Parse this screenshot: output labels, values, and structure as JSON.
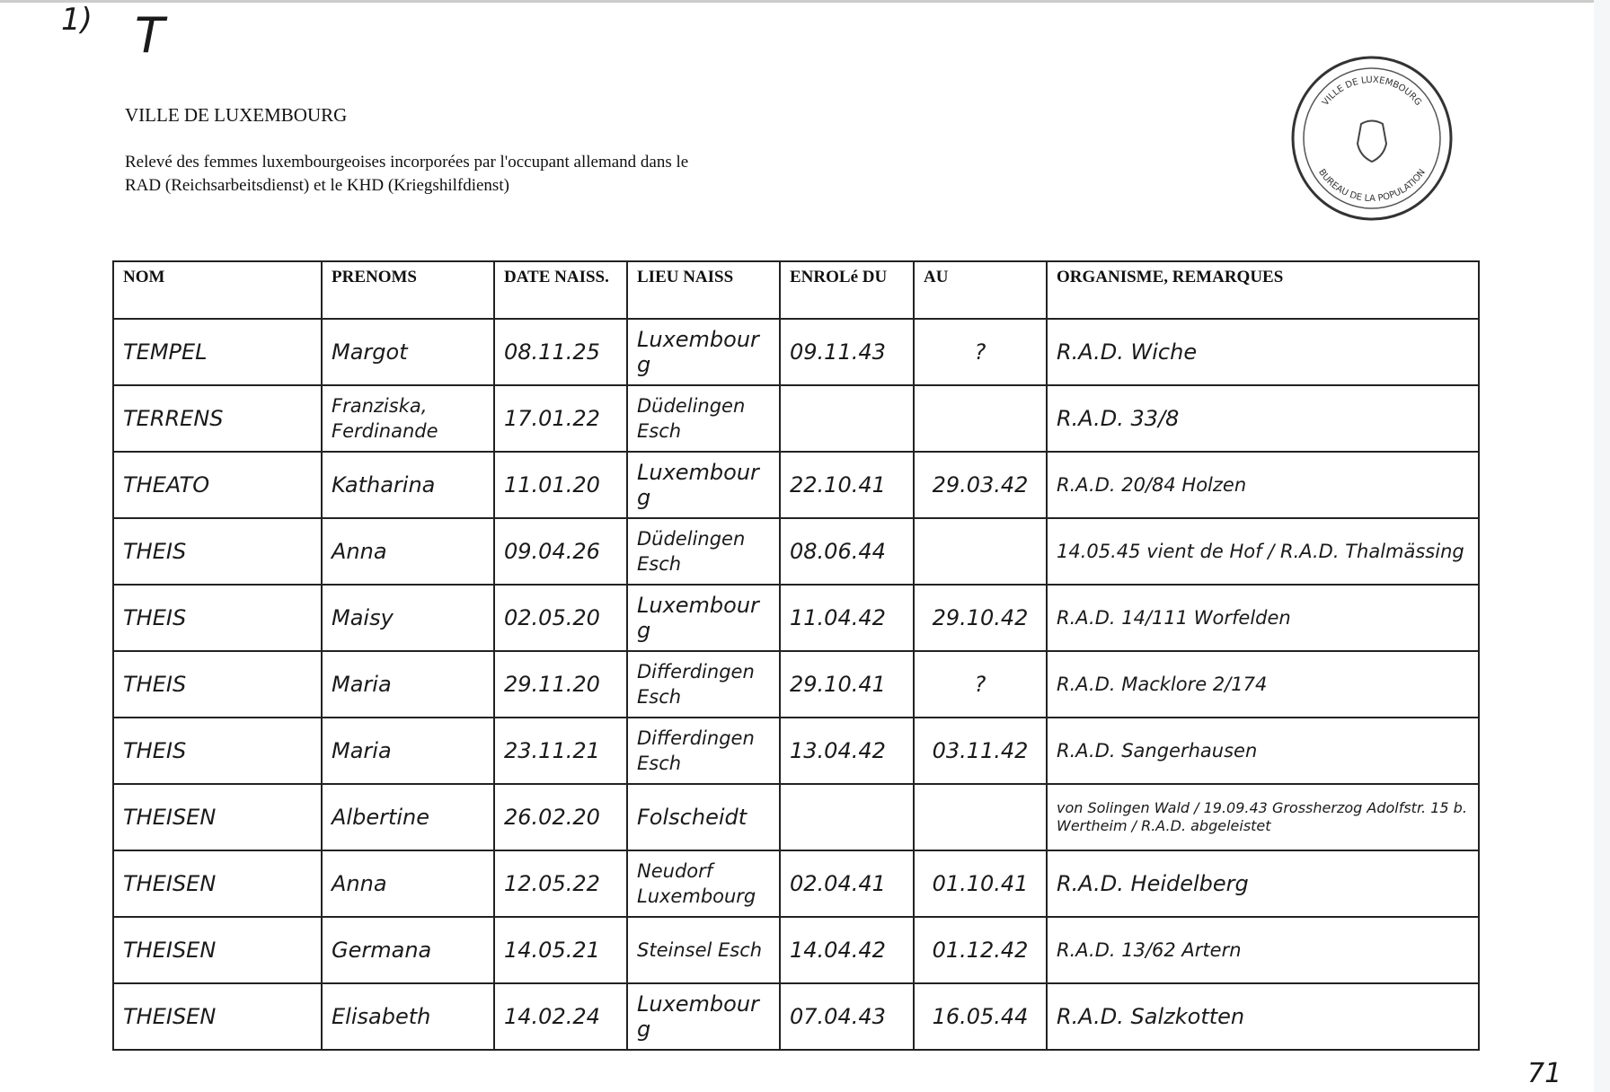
{
  "annotations": {
    "corner_mark": "1)",
    "letter": "T",
    "page_number": "71"
  },
  "header": {
    "city": "VILLE DE LUXEMBOURG",
    "description_line1": "Relevé des femmes luxembourgeoises incorporées par l'occupant allemand dans le",
    "description_line2": "RAD (Reichsarbeitsdienst) et le KHD (Kriegshilfdienst)"
  },
  "stamp": {
    "outer_text": "VILLE DE LUXEMBOURG",
    "inner_text": "BUREAU DE LA POPULATION"
  },
  "table": {
    "columns": [
      "NOM",
      "PRENOMS",
      "DATE NAISS.",
      "LIEU NAISS",
      "ENROLé DU",
      "AU",
      "ORGANISME, REMARQUES"
    ],
    "rows": [
      {
        "nom": "TEMPEL",
        "prenoms": "Margot",
        "date_naiss": "08.11.25",
        "lieu": "Luxembourg",
        "du": "09.11.43",
        "au": "?",
        "remarques": "R.A.D. Wiche"
      },
      {
        "nom": "TERRENS",
        "prenoms": "Franziska, Ferdinande",
        "date_naiss": "17.01.22",
        "lieu": "Düdelingen Esch",
        "du": "",
        "au": "",
        "remarques": "R.A.D. 33/8"
      },
      {
        "nom": "THEATO",
        "prenoms": "Katharina",
        "date_naiss": "11.01.20",
        "lieu": "Luxembourg",
        "du": "22.10.41",
        "au": "29.03.42",
        "remarques": "R.A.D. 20/84 Holzen"
      },
      {
        "nom": "THEIS",
        "prenoms": "Anna",
        "date_naiss": "09.04.26",
        "lieu": "Düdelingen Esch",
        "du": "08.06.44",
        "au": "",
        "remarques": "14.05.45 vient de Hof / R.A.D. Thalmässing"
      },
      {
        "nom": "THEIS",
        "prenoms": "Maisy",
        "date_naiss": "02.05.20",
        "lieu": "Luxembourg",
        "du": "11.04.42",
        "au": "29.10.42",
        "remarques": "R.A.D. 14/111 Worfelden"
      },
      {
        "nom": "THEIS",
        "prenoms": "Maria",
        "date_naiss": "29.11.20",
        "lieu": "Differdingen Esch",
        "du": "29.10.41",
        "au": "?",
        "remarques": "R.A.D. Macklore 2/174"
      },
      {
        "nom": "THEIS",
        "prenoms": "Maria",
        "date_naiss": "23.11.21",
        "lieu": "Differdingen Esch",
        "du": "13.04.42",
        "au": "03.11.42",
        "remarques": "R.A.D. Sangerhausen"
      },
      {
        "nom": "THEISEN",
        "prenoms": "Albertine",
        "date_naiss": "26.02.20",
        "lieu": "Folscheidt",
        "du": "",
        "au": "",
        "remarques": "von Solingen Wald / 19.09.43 Grossherzog Adolfstr. 15 b. Wertheim / R.A.D. abgeleistet"
      },
      {
        "nom": "THEISEN",
        "prenoms": "Anna",
        "date_naiss": "12.05.22",
        "lieu": "Neudorf Luxembourg",
        "du": "02.04.41",
        "au": "01.10.41",
        "remarques": "R.A.D. Heidelberg"
      },
      {
        "nom": "THEISEN",
        "prenoms": "Germana",
        "date_naiss": "14.05.21",
        "lieu": "Steinsel Esch",
        "du": "14.04.42",
        "au": "01.12.42",
        "remarques": "R.A.D. 13/62 Artern"
      },
      {
        "nom": "THEISEN",
        "prenoms": "Elisabeth",
        "date_naiss": "14.02.24",
        "lieu": "Luxembourg",
        "du": "07.04.43",
        "au": "16.05.44",
        "remarques": "R.A.D. Salzkotten"
      }
    ]
  }
}
